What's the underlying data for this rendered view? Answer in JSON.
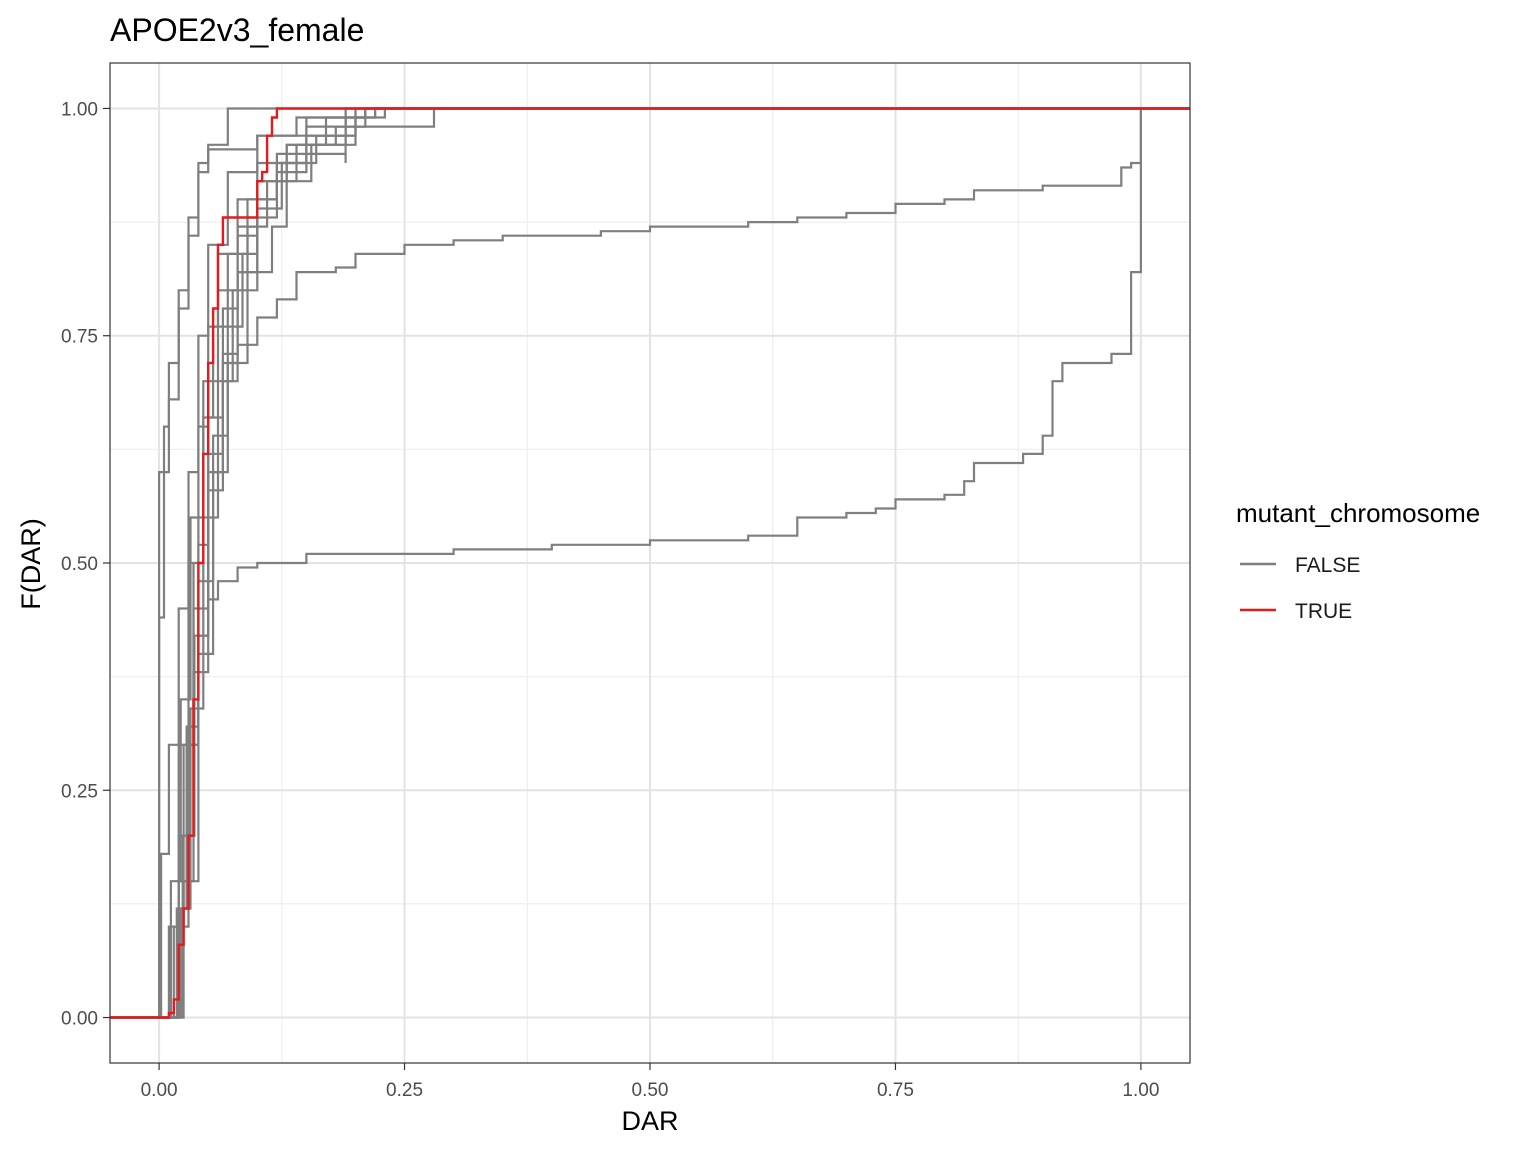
{
  "chart_data": {
    "type": "line",
    "title": "APOE2v3_female",
    "xlabel": "DAR",
    "ylabel": "F(DAR)",
    "xlim": [
      -0.05,
      1.05
    ],
    "ylim": [
      -0.05,
      1.05
    ],
    "x_ticks": [
      0,
      0.25,
      0.5,
      0.75,
      1.0
    ],
    "x_tick_labels": [
      "0.00",
      "0.25",
      "0.50",
      "0.75",
      "1.00"
    ],
    "y_ticks": [
      0,
      0.25,
      0.5,
      0.75,
      1.0
    ],
    "y_tick_labels": [
      "0.00",
      "0.25",
      "0.50",
      "0.75",
      "1.00"
    ],
    "grid": true,
    "legend": {
      "title": "mutant_chromosome",
      "placement": "right",
      "entries": [
        {
          "label": "FALSE",
          "color": "#7f7f7f"
        },
        {
          "label": "TRUE",
          "color": "#e41a1c"
        }
      ]
    },
    "series": [
      {
        "group": "FALSE",
        "color": "#7f7f7f",
        "points": [
          [
            -0.05,
            0
          ],
          [
            0.0,
            0
          ],
          [
            0.0,
            0.6
          ],
          [
            0.005,
            0.65
          ],
          [
            0.01,
            0.72
          ],
          [
            0.02,
            0.8
          ],
          [
            0.03,
            0.88
          ],
          [
            0.04,
            0.94
          ],
          [
            0.05,
            0.955
          ],
          [
            0.1,
            0.97
          ],
          [
            0.15,
            0.99
          ],
          [
            0.2,
            1.0
          ],
          [
            1.05,
            1.0
          ]
        ]
      },
      {
        "group": "FALSE",
        "color": "#7f7f7f",
        "points": [
          [
            -0.05,
            0
          ],
          [
            0.0,
            0
          ],
          [
            0.0,
            0.44
          ],
          [
            0.005,
            0.6
          ],
          [
            0.01,
            0.68
          ],
          [
            0.02,
            0.78
          ],
          [
            0.03,
            0.86
          ],
          [
            0.04,
            0.93
          ],
          [
            0.05,
            0.96
          ],
          [
            0.07,
            1.0
          ],
          [
            1.05,
            1.0
          ]
        ]
      },
      {
        "group": "FALSE",
        "color": "#7f7f7f",
        "points": [
          [
            -0.05,
            0
          ],
          [
            0.0,
            0
          ],
          [
            0.002,
            0.18
          ],
          [
            0.01,
            0.3
          ],
          [
            0.02,
            0.45
          ],
          [
            0.03,
            0.6
          ],
          [
            0.04,
            0.75
          ],
          [
            0.05,
            0.85
          ],
          [
            0.07,
            0.93
          ],
          [
            0.1,
            0.97
          ],
          [
            0.14,
            0.99
          ],
          [
            0.22,
            1.0
          ],
          [
            1.05,
            1.0
          ]
        ]
      },
      {
        "group": "FALSE",
        "color": "#7f7f7f",
        "points": [
          [
            -0.05,
            0
          ],
          [
            0.003,
            0
          ],
          [
            0.01,
            0.1
          ],
          [
            0.02,
            0.3
          ],
          [
            0.03,
            0.5
          ],
          [
            0.04,
            0.65
          ],
          [
            0.05,
            0.76
          ],
          [
            0.06,
            0.84
          ],
          [
            0.08,
            0.9
          ],
          [
            0.1,
            0.94
          ],
          [
            0.15,
            0.98
          ],
          [
            0.28,
            0.98
          ],
          [
            0.28,
            1.0
          ],
          [
            1.05,
            1.0
          ]
        ]
      },
      {
        "group": "FALSE",
        "color": "#7f7f7f",
        "points": [
          [
            -0.05,
            0
          ],
          [
            0.005,
            0
          ],
          [
            0.015,
            0.1
          ],
          [
            0.025,
            0.3
          ],
          [
            0.035,
            0.5
          ],
          [
            0.045,
            0.66
          ],
          [
            0.055,
            0.76
          ],
          [
            0.07,
            0.84
          ],
          [
            0.09,
            0.9
          ],
          [
            0.12,
            0.95
          ],
          [
            0.19,
            0.94
          ],
          [
            0.19,
            1.0
          ],
          [
            1.05,
            1.0
          ]
        ]
      },
      {
        "group": "FALSE",
        "color": "#7f7f7f",
        "points": [
          [
            -0.05,
            0
          ],
          [
            0.006,
            0
          ],
          [
            0.018,
            0.12
          ],
          [
            0.028,
            0.32
          ],
          [
            0.04,
            0.52
          ],
          [
            0.05,
            0.66
          ],
          [
            0.065,
            0.78
          ],
          [
            0.08,
            0.86
          ],
          [
            0.1,
            0.92
          ],
          [
            0.13,
            0.96
          ],
          [
            0.2,
            0.99
          ],
          [
            0.23,
            1.0
          ],
          [
            1.05,
            1.0
          ]
        ]
      },
      {
        "group": "FALSE",
        "color": "#7f7f7f",
        "points": [
          [
            -0.05,
            0
          ],
          [
            0.008,
            0
          ],
          [
            0.02,
            0.1
          ],
          [
            0.03,
            0.3
          ],
          [
            0.04,
            0.48
          ],
          [
            0.055,
            0.64
          ],
          [
            0.07,
            0.76
          ],
          [
            0.085,
            0.84
          ],
          [
            0.1,
            0.9
          ],
          [
            0.12,
            0.94
          ],
          [
            0.15,
            0.97
          ],
          [
            0.2,
            0.99
          ],
          [
            0.22,
            1.0
          ],
          [
            1.05,
            1.0
          ]
        ]
      },
      {
        "group": "FALSE",
        "color": "#7f7f7f",
        "points": [
          [
            -0.05,
            0
          ],
          [
            0.01,
            0
          ],
          [
            0.022,
            0.12
          ],
          [
            0.032,
            0.34
          ],
          [
            0.045,
            0.55
          ],
          [
            0.06,
            0.7
          ],
          [
            0.075,
            0.8
          ],
          [
            0.09,
            0.87
          ],
          [
            0.11,
            0.92
          ],
          [
            0.14,
            0.96
          ],
          [
            0.18,
            0.98
          ],
          [
            0.21,
            1.0
          ],
          [
            1.05,
            1.0
          ]
        ]
      },
      {
        "group": "FALSE",
        "color": "#7f7f7f",
        "points": [
          [
            -0.05,
            0
          ],
          [
            0.004,
            0
          ],
          [
            0.012,
            0.15
          ],
          [
            0.022,
            0.35
          ],
          [
            0.032,
            0.55
          ],
          [
            0.045,
            0.7
          ],
          [
            0.06,
            0.8
          ],
          [
            0.08,
            0.87
          ],
          [
            0.1,
            0.92
          ],
          [
            0.13,
            0.96
          ],
          [
            0.17,
            0.99
          ],
          [
            0.19,
            1.0
          ],
          [
            1.05,
            1.0
          ]
        ]
      },
      {
        "group": "FALSE",
        "color": "#7f7f7f",
        "points": [
          [
            -0.05,
            0
          ],
          [
            0.007,
            0
          ],
          [
            0.02,
            0.15
          ],
          [
            0.035,
            0.38
          ],
          [
            0.05,
            0.58
          ],
          [
            0.065,
            0.72
          ],
          [
            0.08,
            0.82
          ],
          [
            0.1,
            0.89
          ],
          [
            0.125,
            0.94
          ],
          [
            0.16,
            0.97
          ],
          [
            0.2,
            1.0
          ],
          [
            1.05,
            1.0
          ]
        ]
      },
      {
        "group": "FALSE",
        "color": "#7f7f7f",
        "points": [
          [
            -0.05,
            0
          ],
          [
            0.01,
            0
          ],
          [
            0.024,
            0.2
          ],
          [
            0.036,
            0.42
          ],
          [
            0.05,
            0.6
          ],
          [
            0.065,
            0.73
          ],
          [
            0.08,
            0.82
          ],
          [
            0.1,
            0.88
          ],
          [
            0.12,
            0.93
          ],
          [
            0.15,
            0.97
          ],
          [
            0.19,
            0.99
          ],
          [
            0.21,
            1.0
          ],
          [
            1.05,
            1.0
          ]
        ]
      },
      {
        "group": "FALSE",
        "color": "#7f7f7f",
        "points": [
          [
            -0.05,
            0
          ],
          [
            0.01,
            0
          ],
          [
            0.025,
            0.15
          ],
          [
            0.04,
            0.4
          ],
          [
            0.055,
            0.6
          ],
          [
            0.07,
            0.72
          ],
          [
            0.09,
            0.8
          ],
          [
            0.1,
            0.82
          ],
          [
            0.115,
            0.87
          ],
          [
            0.13,
            0.92
          ],
          [
            0.155,
            0.96
          ],
          [
            0.19,
            0.99
          ],
          [
            0.21,
            1.0
          ],
          [
            1.05,
            1.0
          ]
        ]
      },
      {
        "group": "FALSE",
        "color": "#7f7f7f",
        "points": [
          [
            -0.05,
            0
          ],
          [
            0.008,
            0
          ],
          [
            0.02,
            0.15
          ],
          [
            0.03,
            0.3
          ],
          [
            0.04,
            0.42
          ],
          [
            0.05,
            0.46
          ],
          [
            0.06,
            0.48
          ],
          [
            0.08,
            0.495
          ],
          [
            0.1,
            0.5
          ],
          [
            0.15,
            0.51
          ],
          [
            0.3,
            0.515
          ],
          [
            0.4,
            0.52
          ],
          [
            0.5,
            0.525
          ],
          [
            0.6,
            0.53
          ],
          [
            0.65,
            0.55
          ],
          [
            0.7,
            0.555
          ],
          [
            0.73,
            0.56
          ],
          [
            0.75,
            0.57
          ],
          [
            0.8,
            0.575
          ],
          [
            0.82,
            0.59
          ],
          [
            0.83,
            0.61
          ],
          [
            0.88,
            0.62
          ],
          [
            0.9,
            0.64
          ],
          [
            0.91,
            0.7
          ],
          [
            0.92,
            0.72
          ],
          [
            0.97,
            0.73
          ],
          [
            0.99,
            0.78
          ],
          [
            0.99,
            0.82
          ],
          [
            1.0,
            1.0
          ],
          [
            1.05,
            1.0
          ]
        ]
      },
      {
        "group": "FALSE",
        "color": "#7f7f7f",
        "points": [
          [
            -0.05,
            0
          ],
          [
            0.005,
            0
          ],
          [
            0.02,
            0.2
          ],
          [
            0.035,
            0.45
          ],
          [
            0.05,
            0.62
          ],
          [
            0.065,
            0.7
          ],
          [
            0.08,
            0.74
          ],
          [
            0.1,
            0.77
          ],
          [
            0.12,
            0.79
          ],
          [
            0.14,
            0.82
          ],
          [
            0.18,
            0.825
          ],
          [
            0.2,
            0.84
          ],
          [
            0.25,
            0.85
          ],
          [
            0.3,
            0.855
          ],
          [
            0.35,
            0.86
          ],
          [
            0.45,
            0.865
          ],
          [
            0.5,
            0.87
          ],
          [
            0.6,
            0.875
          ],
          [
            0.65,
            0.88
          ],
          [
            0.7,
            0.885
          ],
          [
            0.75,
            0.895
          ],
          [
            0.8,
            0.9
          ],
          [
            0.83,
            0.91
          ],
          [
            0.9,
            0.915
          ],
          [
            0.98,
            0.92
          ],
          [
            0.98,
            0.935
          ],
          [
            0.99,
            0.94
          ],
          [
            1.0,
            1.0
          ],
          [
            1.05,
            1.0
          ]
        ]
      },
      {
        "group": "TRUE",
        "color": "#e41a1c",
        "points": [
          [
            -0.05,
            0
          ],
          [
            0.005,
            0
          ],
          [
            0.01,
            0.005
          ],
          [
            0.015,
            0.02
          ],
          [
            0.02,
            0.08
          ],
          [
            0.025,
            0.12
          ],
          [
            0.03,
            0.2
          ],
          [
            0.035,
            0.35
          ],
          [
            0.04,
            0.5
          ],
          [
            0.045,
            0.62
          ],
          [
            0.05,
            0.72
          ],
          [
            0.055,
            0.78
          ],
          [
            0.06,
            0.85
          ],
          [
            0.065,
            0.88
          ],
          [
            0.095,
            0.88
          ],
          [
            0.1,
            0.92
          ],
          [
            0.105,
            0.93
          ],
          [
            0.11,
            0.97
          ],
          [
            0.115,
            0.99
          ],
          [
            0.12,
            1.0
          ],
          [
            1.05,
            1.0
          ]
        ]
      }
    ]
  }
}
